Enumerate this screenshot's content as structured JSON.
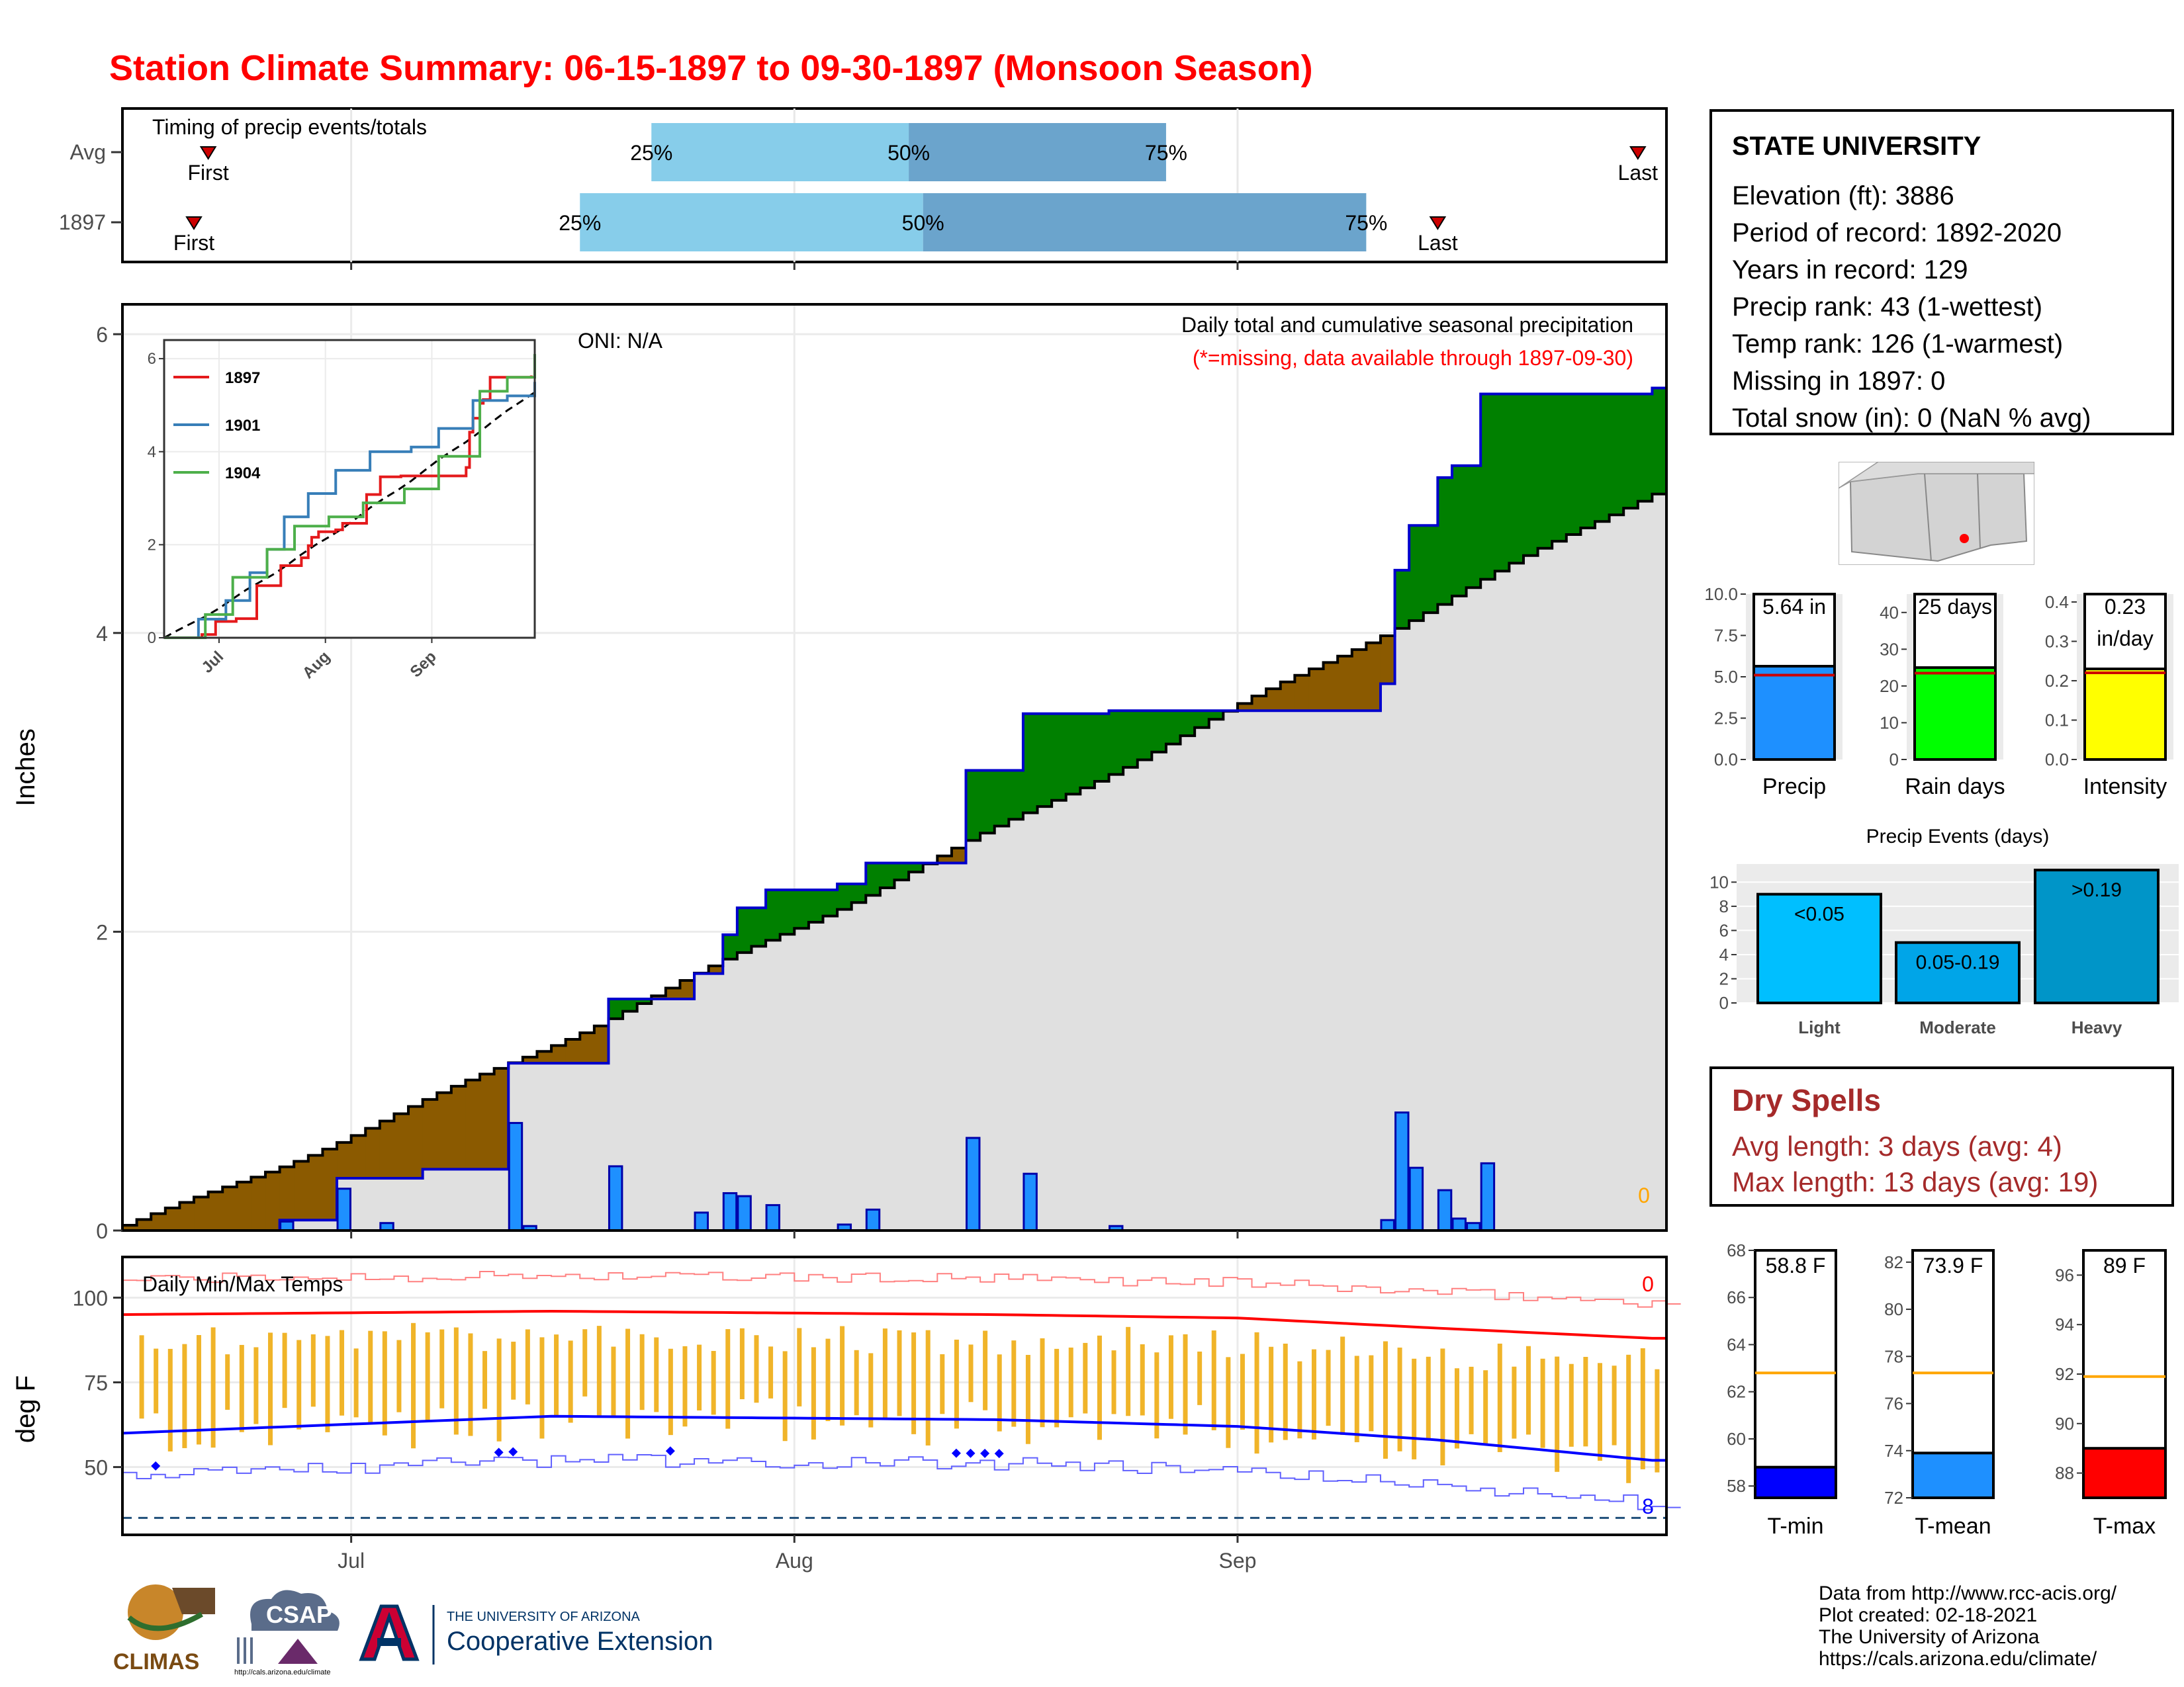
{
  "title": "Station Climate Summary: 06-15-1897 to 09-30-1897 (Monsoon Season)",
  "colors": {
    "title": "#ff0000",
    "light_blue": "#87cdea",
    "mid_blue": "#6ba4cc",
    "green": "#008000",
    "brown": "#8b5a00",
    "grey_fill": "#e0e0e0",
    "bar_blue": "#1e90ff",
    "tmax_line": "#ff0000",
    "tmin_line": "#0000ff",
    "temp_bar": "#f0b429",
    "rank_orange": "#ffa500"
  },
  "timing": {
    "label": "Timing of precip events/totals",
    "rows": [
      {
        "name": "Avg",
        "first_label": "First",
        "last_label": "Last",
        "first_date": "1897-06-21",
        "last_date": "1897-09-29",
        "p25": "25%",
        "p50": "50%",
        "p75": "75%",
        "p25_date": "1897-07-22",
        "p50_date": "1897-08-09",
        "p75_date": "1897-08-27"
      },
      {
        "name": "1897",
        "first_label": "First",
        "last_label": "Last",
        "first_date": "1897-06-20",
        "last_date": "1897-09-15",
        "p25": "25%",
        "p50": "50%",
        "p75": "75%",
        "p25_date": "1897-07-17",
        "p50_date": "1897-08-10",
        "p75_date": "1897-09-10"
      }
    ]
  },
  "precip_chart": {
    "ylabel": "Inches",
    "y_ticks": [
      "0",
      "2",
      "4",
      "6"
    ],
    "oni": "ONI: N/A",
    "caption": "Daily total and cumulative seasonal precipitation",
    "note": "(*=missing, data available through 1897-09-30)",
    "missing_count": "0"
  },
  "inset": {
    "y_ticks": [
      "0",
      "2",
      "4",
      "6"
    ],
    "x_ticks": [
      "Jul",
      "Aug",
      "Sep"
    ],
    "legend": [
      {
        "name": "1897",
        "color": "#e41a1c"
      },
      {
        "name": "1901",
        "color": "#377eb8"
      },
      {
        "name": "1904",
        "color": "#4daf4a"
      }
    ]
  },
  "temp_chart": {
    "label": "Daily Min/Max Temps",
    "ylabel": "deg F",
    "y_ticks": [
      "50",
      "75",
      "100"
    ],
    "x_ticks": [
      "Jul",
      "Aug",
      "Sep"
    ],
    "max_count": "0",
    "min_count": "8"
  },
  "station": {
    "name": "STATE UNIVERSITY",
    "rows": [
      "Elevation (ft): 3886",
      "Period of record: 1892-2020",
      "Years in record: 129",
      "Precip rank: 43 (1-wettest)",
      "Temp rank: 126 (1-warmest)",
      "Missing in 1897: 0",
      "Total snow (in): 0 (NaN % avg)"
    ]
  },
  "gauges": [
    {
      "label": "Precip",
      "value_text": [
        "5.64 in"
      ],
      "value": 5.64,
      "avg": 5.1,
      "ymax": 10,
      "ticks": [
        "0.0",
        "2.5",
        "5.0",
        "7.5",
        "10.0"
      ],
      "color": "#1e90ff"
    },
    {
      "label": "Rain days",
      "value_text": [
        "25 days"
      ],
      "value": 25,
      "avg": 23.5,
      "ymax": 45,
      "ticks": [
        "0",
        "10",
        "20",
        "30",
        "40"
      ],
      "color": "#00ff00"
    },
    {
      "label": "Intensity",
      "value_text": [
        "0.23",
        "in/day"
      ],
      "value": 0.23,
      "avg": 0.22,
      "ymax": 0.42,
      "ticks": [
        "0.0",
        "0.1",
        "0.2",
        "0.3",
        "0.4"
      ],
      "color": "#ffff00"
    }
  ],
  "events": {
    "title": "Precip Events (days)",
    "ticks": [
      "0",
      "2",
      "4",
      "6",
      "8",
      "10"
    ],
    "bars": [
      {
        "category": "Light",
        "label": "<0.05",
        "value": 9
      },
      {
        "category": "Moderate",
        "label": "0.05-0.19",
        "value": 5
      },
      {
        "category": "Heavy",
        "label": ">0.19",
        "value": 11
      }
    ]
  },
  "dry_spells": {
    "title": "Dry Spells",
    "avg": "Avg length: 3 days (avg: 4)",
    "max": "Max length: 13 days (avg: 19)"
  },
  "temp_gauges": [
    {
      "label": "T-min",
      "value_text": "58.8 F",
      "value": 58.8,
      "avg": 62.8,
      "ymin": 57.5,
      "ymax": 68,
      "ticks": [
        "58",
        "60",
        "62",
        "64",
        "66",
        "68"
      ],
      "color": "#0000ff"
    },
    {
      "label": "T-mean",
      "value_text": "73.9 F",
      "value": 73.9,
      "avg": 77.3,
      "ymin": 72,
      "ymax": 82.5,
      "ticks": [
        "72",
        "74",
        "76",
        "78",
        "80",
        "82"
      ],
      "color": "#1e90ff"
    },
    {
      "label": "T-max",
      "value_text": "89 F",
      "value": 89,
      "avg": 91.9,
      "ymin": 87,
      "ymax": 97,
      "ticks": [
        "88",
        "90",
        "92",
        "94",
        "96"
      ],
      "color": "#ff0000"
    }
  ],
  "footer": [
    "Data from http://www.rcc-acis.org/",
    "Plot created: 02-18-2021",
    "The University of Arizona",
    "https://cals.arizona.edu/climate/"
  ],
  "logos": {
    "climas": "CLIMAS",
    "csap": "CSAP",
    "csap_url": "http://cals.arizona.edu/climate",
    "ua_small": "THE UNIVERSITY OF ARIZONA",
    "ua_big": "Cooperative Extension"
  },
  "chart_data": [
    {
      "type": "area",
      "title": "Daily total and cumulative seasonal precipitation",
      "ylabel": "Inches",
      "ylim": [
        0,
        6.2
      ],
      "x_range": [
        "1897-06-15",
        "1897-09-30"
      ],
      "x_ticks": [
        "Jul",
        "Aug",
        "Sep"
      ],
      "cumulative_1897": [
        [
          "1897-06-15",
          0.0
        ],
        [
          "1897-06-26",
          0.07
        ],
        [
          "1897-06-30",
          0.35
        ],
        [
          "1897-07-06",
          0.41
        ],
        [
          "1897-07-12",
          1.12
        ],
        [
          "1897-07-19",
          1.55
        ],
        [
          "1897-07-25",
          1.72
        ],
        [
          "1897-07-27",
          1.98
        ],
        [
          "1897-07-28",
          2.16
        ],
        [
          "1897-07-30",
          2.28
        ],
        [
          "1897-08-04",
          2.32
        ],
        [
          "1897-08-06",
          2.46
        ],
        [
          "1897-08-13",
          3.08
        ],
        [
          "1897-08-17",
          3.46
        ],
        [
          "1897-08-23",
          3.48
        ],
        [
          "1897-09-11",
          3.66
        ],
        [
          "1897-09-12",
          4.42
        ],
        [
          "1897-09-13",
          4.72
        ],
        [
          "1897-09-15",
          5.04
        ],
        [
          "1897-09-16",
          5.12
        ],
        [
          "1897-09-18",
          5.6
        ],
        [
          "1897-09-30",
          5.64
        ]
      ],
      "cumulative_avg_end": 4.95,
      "daily_1897": [
        [
          "1897-06-26",
          0.06
        ],
        [
          "1897-06-30",
          0.28
        ],
        [
          "1897-07-03",
          0.05
        ],
        [
          "1897-07-12",
          0.72
        ],
        [
          "1897-07-13",
          0.03
        ],
        [
          "1897-07-19",
          0.43
        ],
        [
          "1897-07-25",
          0.12
        ],
        [
          "1897-07-27",
          0.25
        ],
        [
          "1897-07-28",
          0.23
        ],
        [
          "1897-07-30",
          0.17
        ],
        [
          "1897-08-04",
          0.04
        ],
        [
          "1897-08-06",
          0.14
        ],
        [
          "1897-08-13",
          0.62
        ],
        [
          "1897-08-17",
          0.38
        ],
        [
          "1897-08-23",
          0.03
        ],
        [
          "1897-09-11",
          0.07
        ],
        [
          "1897-09-12",
          0.79
        ],
        [
          "1897-09-13",
          0.42
        ],
        [
          "1897-09-15",
          0.27
        ],
        [
          "1897-09-16",
          0.08
        ],
        [
          "1897-09-17",
          0.05
        ],
        [
          "1897-09-18",
          0.45
        ]
      ]
    },
    {
      "type": "line",
      "title": "Daily Min/Max Temps",
      "ylabel": "deg F",
      "ylim": [
        30,
        112
      ],
      "series": [
        {
          "name": "Avg max",
          "x": [
            "1897-06-15",
            "1897-07-15",
            "1897-08-15",
            "1897-09-01",
            "1897-09-15",
            "1897-09-30"
          ],
          "values": [
            95,
            96,
            95,
            94,
            91,
            88
          ]
        },
        {
          "name": "Avg min",
          "x": [
            "1897-06-15",
            "1897-07-15",
            "1897-08-15",
            "1897-09-01",
            "1897-09-15",
            "1897-09-30"
          ],
          "values": [
            60,
            65,
            64,
            62,
            58,
            52
          ]
        }
      ]
    }
  ]
}
